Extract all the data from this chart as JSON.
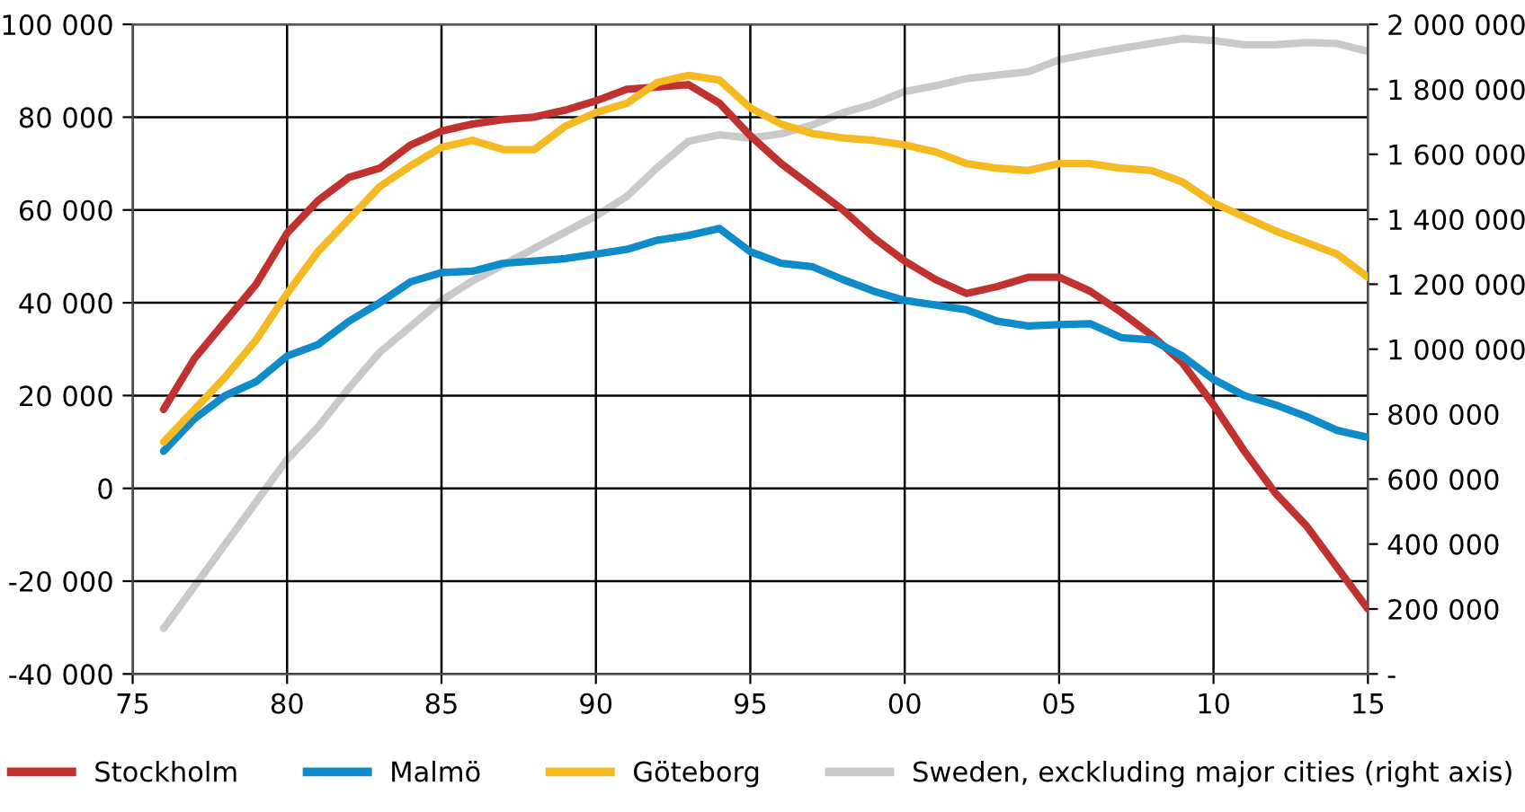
{
  "chart_data": {
    "type": "line",
    "x": [
      1976,
      1977,
      1978,
      1979,
      1980,
      1981,
      1982,
      1983,
      1984,
      1985,
      1986,
      1987,
      1988,
      1989,
      1990,
      1991,
      1992,
      1993,
      1994,
      1995,
      1996,
      1997,
      1998,
      1999,
      2000,
      2001,
      2002,
      2003,
      2004,
      2005,
      2006,
      2007,
      2008,
      2009,
      2010,
      2011,
      2012,
      2013,
      2014,
      2015
    ],
    "series": [
      {
        "name": "Stockholm",
        "color": "#c0312f",
        "values": [
          17000,
          28000,
          36000,
          44000,
          55000,
          62000,
          67000,
          69000,
          74000,
          77000,
          78500,
          79500,
          80000,
          81500,
          83500,
          86000,
          86500,
          87000,
          83000,
          76000,
          70000,
          65000,
          60000,
          54000,
          49000,
          45000,
          42000,
          43500,
          45500,
          45500,
          42500,
          38000,
          33000,
          27000,
          18000,
          8000,
          -1000,
          -8000,
          -17000,
          -26000
        ]
      },
      {
        "name": "Malmö",
        "color": "#0f8bc9",
        "values": [
          8000,
          15000,
          20000,
          23000,
          28500,
          31000,
          36000,
          40000,
          44500,
          46500,
          46800,
          48500,
          49000,
          49500,
          50500,
          51500,
          53500,
          54500,
          56000,
          51000,
          48500,
          47800,
          45000,
          42500,
          40500,
          39500,
          38500,
          36000,
          35000,
          35300,
          35500,
          32500,
          32000,
          28500,
          23500,
          20000,
          18000,
          15500,
          12500,
          11000
        ]
      },
      {
        "name": "Göteborg",
        "color": "#f5b921",
        "values": [
          10000,
          17000,
          24000,
          32000,
          42000,
          51000,
          58000,
          65000,
          69500,
          73500,
          75000,
          73000,
          73000,
          78000,
          81000,
          83000,
          87500,
          89000,
          88000,
          82000,
          78500,
          76500,
          75500,
          75000,
          74000,
          72500,
          70000,
          69000,
          68500,
          70000,
          70000,
          69000,
          68500,
          66000,
          61500,
          58500,
          55500,
          53000,
          50500,
          45500
        ]
      },
      {
        "name": "Sweden, exckluding major cities (right axis)",
        "color": "#c9c9c9",
        "axis": "y2",
        "values": [
          140000,
          270000,
          400000,
          530000,
          660000,
          760000,
          880000,
          990000,
          1070000,
          1150000,
          1210000,
          1260000,
          1310000,
          1360000,
          1410000,
          1470000,
          1560000,
          1640000,
          1660000,
          1650000,
          1663000,
          1690000,
          1728000,
          1755000,
          1793000,
          1811000,
          1833000,
          1844000,
          1854000,
          1891000,
          1909000,
          1926000,
          1941000,
          1956000,
          1950000,
          1937000,
          1937000,
          1944000,
          1941000,
          1917000
        ]
      }
    ],
    "xlim": [
      1975,
      2015
    ],
    "xticks": [
      {
        "value": 1975,
        "label": "75"
      },
      {
        "value": 1980,
        "label": "80"
      },
      {
        "value": 1985,
        "label": "85"
      },
      {
        "value": 1990,
        "label": "90"
      },
      {
        "value": 1995,
        "label": "95"
      },
      {
        "value": 2000,
        "label": "00"
      },
      {
        "value": 2005,
        "label": "05"
      },
      {
        "value": 2010,
        "label": "10"
      },
      {
        "value": 2015,
        "label": "15"
      }
    ],
    "ylim": [
      -40000,
      100000
    ],
    "yticks": [
      {
        "value": -40000,
        "label": "-40 000"
      },
      {
        "value": -20000,
        "label": "-20 000"
      },
      0,
      {
        "value": 20000,
        "label": "20 000"
      },
      {
        "value": 40000,
        "label": "40 000"
      },
      {
        "value": 60000,
        "label": "60 000"
      },
      {
        "value": 80000,
        "label": "80 000"
      },
      {
        "value": 100000,
        "label": "100 000"
      }
    ],
    "y2lim": [
      0,
      2000000
    ],
    "y2ticks": [
      {
        "value": 0,
        "label": "-"
      },
      {
        "value": 200000,
        "label": "200 000"
      },
      {
        "value": 400000,
        "label": "400 000"
      },
      {
        "value": 600000,
        "label": "600 000"
      },
      {
        "value": 800000,
        "label": "800 000"
      },
      {
        "value": 1000000,
        "label": "1 000 000"
      },
      {
        "value": 1200000,
        "label": "1 200 000"
      },
      {
        "value": 1400000,
        "label": "1 400 000"
      },
      {
        "value": 1600000,
        "label": "1 600 000"
      },
      {
        "value": 1800000,
        "label": "1 800 000"
      },
      {
        "value": 2000000,
        "label": "2 000 000"
      }
    ],
    "grid": true,
    "legend": "bottom",
    "marker": "none",
    "line_style": "solid"
  }
}
